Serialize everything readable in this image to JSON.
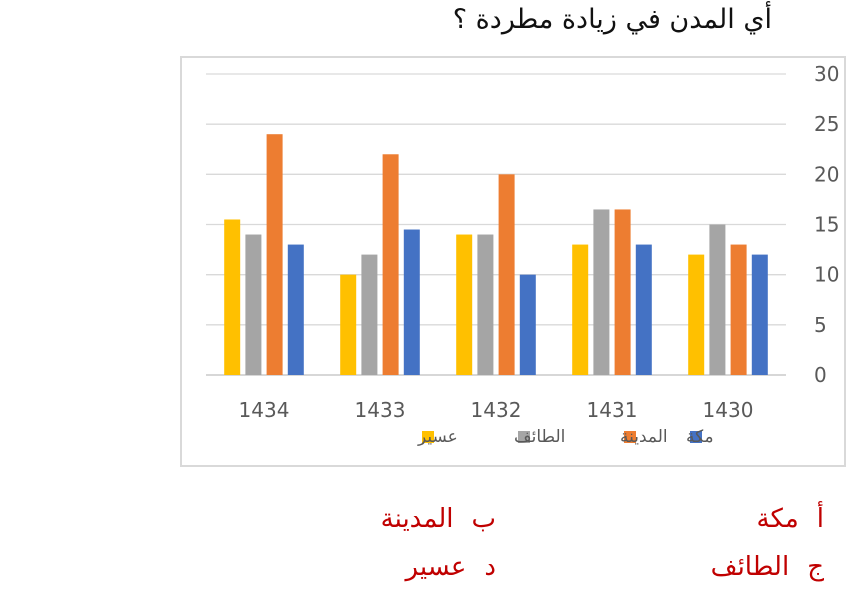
{
  "question": "أي المدن في زيادة مطردة ؟",
  "chart_data": {
    "type": "bar",
    "categories": [
      "1430",
      "1431",
      "1432",
      "1433",
      "1434"
    ],
    "series": [
      {
        "name": "مكة",
        "color": "#4472c4",
        "values": [
          12,
          13,
          10,
          14.5,
          13
        ]
      },
      {
        "name": "المدينة",
        "color": "#ed7d31",
        "values": [
          13,
          16.5,
          20,
          22,
          24
        ]
      },
      {
        "name": "الطائف",
        "color": "#a5a5a5",
        "values": [
          15,
          16.5,
          14,
          12,
          14
        ]
      },
      {
        "name": "عسير",
        "color": "#ffc000",
        "values": [
          12,
          13,
          14,
          10,
          15.5
        ]
      }
    ],
    "y_ticks": [
      0,
      5,
      10,
      15,
      20,
      25,
      30
    ],
    "ylim": [
      0,
      30
    ],
    "x_direction": "right-to-left",
    "y_axis_side": "right",
    "grid": true,
    "legend": "bottom"
  },
  "options": [
    {
      "letter": "أ",
      "text": "مكة"
    },
    {
      "letter": "ب",
      "text": "المدينة"
    },
    {
      "letter": "ج",
      "text": "الطائف"
    },
    {
      "letter": "د",
      "text": "عسير"
    }
  ]
}
